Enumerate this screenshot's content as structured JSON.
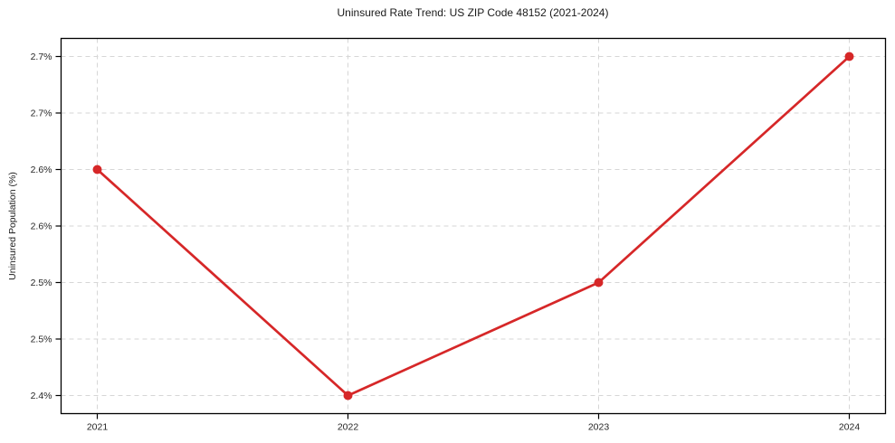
{
  "chart_data": {
    "type": "line",
    "title": "Uninsured Rate Trend: US ZIP Code 48152 (2021-2024)",
    "xlabel": "",
    "ylabel": "Uninsured Population (%)",
    "x": [
      "2021",
      "2022",
      "2023",
      "2024"
    ],
    "series": [
      {
        "name": "Uninsured Rate",
        "values": [
          2.6,
          2.4,
          2.5,
          2.7
        ]
      }
    ],
    "xtick_labels": [
      "2021",
      "2022",
      "2023",
      "2024"
    ],
    "yticks": [
      2.4,
      2.45,
      2.5,
      2.55,
      2.6,
      2.65,
      2.7
    ],
    "ytick_labels": [
      "2.4%",
      "2.5%",
      "2.5%",
      "2.6%",
      "2.6%",
      "2.7%",
      "2.7%"
    ],
    "ylim": [
      2.384,
      2.716
    ],
    "grid": true,
    "grid_style": "dashed",
    "legend": false,
    "line_color": "#d62728",
    "marker": "circle",
    "grid_color": "#d6d6d6",
    "spine_color": "#000000",
    "tick_text_color": "#262626"
  }
}
